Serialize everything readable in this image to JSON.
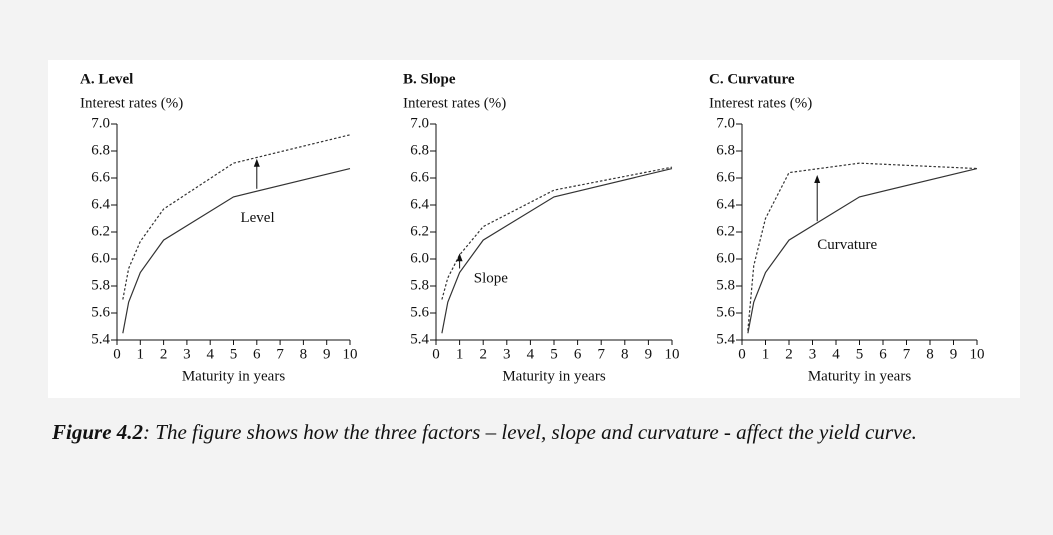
{
  "chart_data": [
    {
      "type": "line",
      "title": "A. Level",
      "ylabel": "Interest rates (%)",
      "xlabel": "Maturity in years",
      "annotation": "Level",
      "x": [
        0.25,
        0.5,
        1,
        2,
        5,
        10
      ],
      "series": [
        {
          "color": "#333",
          "dashed": false,
          "values": [
            5.45,
            5.68,
            5.9,
            6.14,
            6.46,
            6.67
          ]
        },
        {
          "color": "#333",
          "dashed": true,
          "values": [
            5.7,
            5.93,
            6.13,
            6.37,
            6.71,
            6.92
          ]
        }
      ],
      "xlim": [
        0,
        10
      ],
      "xticks": [
        0,
        1,
        2,
        3,
        4,
        5,
        6,
        7,
        8,
        9,
        10
      ],
      "ylim": [
        5.4,
        7.0
      ],
      "yticks": [
        5.4,
        5.6,
        5.8,
        {
          "value": 6.0,
          "label": "6.0"
        },
        6.2,
        6.4,
        6.6,
        6.8,
        {
          "value": 7.0,
          "label": "7.0"
        }
      ]
    },
    {
      "type": "line",
      "title": "B. Slope",
      "ylabel": "Interest rates (%)",
      "xlabel": "Maturity in years",
      "annotation": "Slope",
      "x": [
        0.25,
        0.5,
        1,
        2,
        5,
        10
      ],
      "series": [
        {
          "color": "#333",
          "dashed": false,
          "values": [
            5.45,
            5.68,
            5.9,
            6.14,
            6.46,
            6.67
          ]
        },
        {
          "color": "#333",
          "dashed": true,
          "values": [
            5.7,
            5.86,
            6.03,
            6.24,
            6.51,
            6.68
          ]
        }
      ],
      "xlim": [
        0,
        10
      ],
      "xticks": [
        0,
        1,
        2,
        3,
        4,
        5,
        6,
        7,
        8,
        9,
        10
      ],
      "ylim": [
        5.4,
        7.0
      ],
      "yticks": [
        5.4,
        5.6,
        5.8,
        {
          "value": 6.0,
          "label": "6.0"
        },
        6.2,
        6.4,
        6.6,
        6.8,
        {
          "value": 7.0,
          "label": "7.0"
        }
      ]
    },
    {
      "type": "line",
      "title": "C. Curvature",
      "ylabel": "Interest rates (%)",
      "xlabel": "Maturity in years",
      "annotation": "Curvature",
      "x": [
        0.25,
        0.5,
        1,
        2,
        5,
        10
      ],
      "series": [
        {
          "color": "#333",
          "dashed": false,
          "values": [
            5.45,
            5.68,
            5.9,
            6.14,
            6.46,
            6.67
          ]
        },
        {
          "color": "#333",
          "dashed": true,
          "values": [
            5.47,
            5.95,
            6.3,
            6.64,
            6.71,
            6.67
          ]
        }
      ],
      "xlim": [
        0,
        10
      ],
      "xticks": [
        0,
        1,
        2,
        3,
        4,
        5,
        6,
        7,
        8,
        9,
        10
      ],
      "ylim": [
        5.4,
        7.0
      ],
      "yticks": [
        5.4,
        5.6,
        5.8,
        {
          "value": 6.0,
          "label": "6.0"
        },
        6.2,
        6.4,
        6.6,
        6.8,
        {
          "value": 7.0,
          "label": "7.0"
        }
      ]
    }
  ],
  "caption": {
    "label": "Figure 4.2",
    "text": ": The figure shows how the three factors – level, slope and curvature - affect the yield curve."
  }
}
